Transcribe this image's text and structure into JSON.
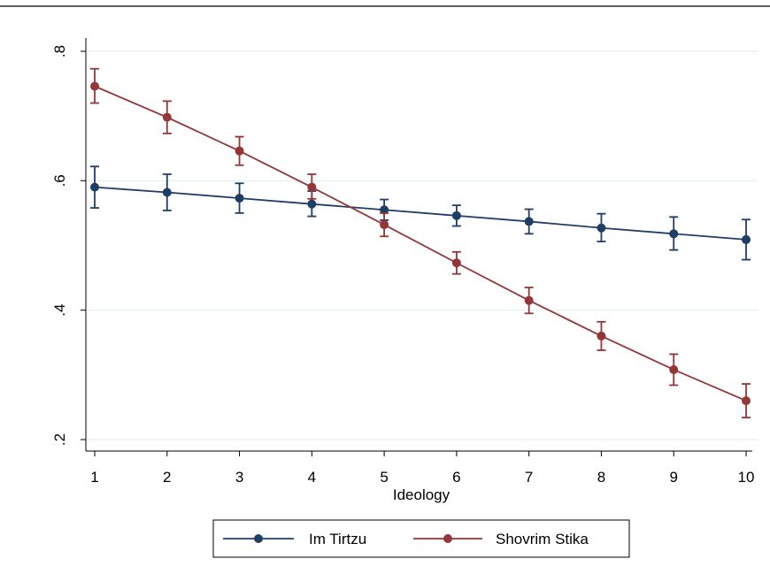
{
  "chart_data": {
    "type": "line",
    "title": "",
    "xlabel": "Ideology",
    "ylabel": "",
    "x": [
      1,
      2,
      3,
      4,
      5,
      6,
      7,
      8,
      9,
      10
    ],
    "x_ticks": [
      "1",
      "2",
      "3",
      "4",
      "5",
      "6",
      "7",
      "8",
      "9",
      "10"
    ],
    "y_ticks": [
      0.2,
      0.4,
      0.6,
      0.8
    ],
    "y_tick_labels": [
      ".2",
      ".4",
      ".6",
      ".8"
    ],
    "xlim": [
      1,
      10
    ],
    "ylim": [
      0.2,
      0.8
    ],
    "grid": "horizontal",
    "legend_position": "bottom",
    "series": [
      {
        "name": "Im Tirtzu",
        "color": "#1f3e66",
        "values": [
          0.59,
          0.582,
          0.573,
          0.564,
          0.555,
          0.546,
          0.537,
          0.527,
          0.518,
          0.509
        ],
        "lower": [
          0.558,
          0.554,
          0.55,
          0.545,
          0.539,
          0.53,
          0.518,
          0.506,
          0.493,
          0.478
        ],
        "upper": [
          0.622,
          0.61,
          0.596,
          0.584,
          0.571,
          0.562,
          0.556,
          0.549,
          0.544,
          0.54
        ]
      },
      {
        "name": "Shovrim Stika",
        "color": "#943538",
        "values": [
          0.746,
          0.698,
          0.646,
          0.59,
          0.532,
          0.473,
          0.415,
          0.36,
          0.308,
          0.26
        ],
        "lower": [
          0.72,
          0.673,
          0.624,
          0.572,
          0.514,
          0.456,
          0.395,
          0.338,
          0.284,
          0.234
        ],
        "upper": [
          0.773,
          0.723,
          0.668,
          0.61,
          0.55,
          0.49,
          0.435,
          0.382,
          0.332,
          0.286
        ]
      }
    ]
  }
}
